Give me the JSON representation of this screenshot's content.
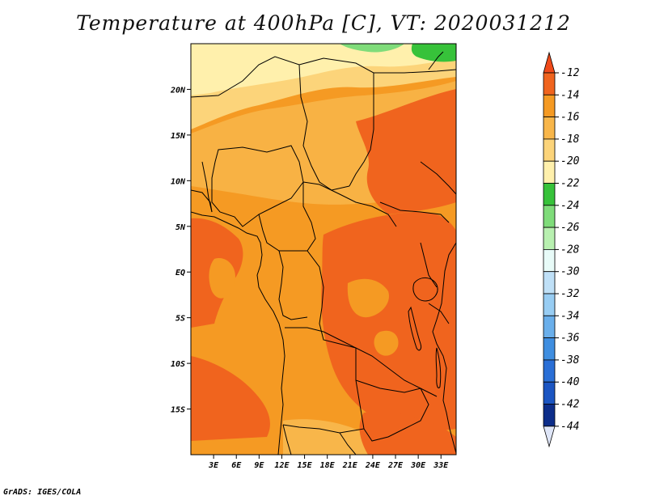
{
  "title": "Temperature at 400hPa [C], VT: 2020031212",
  "footer": "GrADS: IGES/COLA",
  "map": {
    "lon_range": [
      0,
      35
    ],
    "lat_range": [
      -20,
      25
    ],
    "lat_ticks": [
      {
        "value": 20,
        "label": "20N"
      },
      {
        "value": 15,
        "label": "15N"
      },
      {
        "value": 10,
        "label": "10N"
      },
      {
        "value": 5,
        "label": "5N"
      },
      {
        "value": 0,
        "label": "EQ"
      },
      {
        "value": -5,
        "label": "5S"
      },
      {
        "value": -10,
        "label": "10S"
      },
      {
        "value": -15,
        "label": "15S"
      }
    ],
    "lon_ticks": [
      {
        "value": 3,
        "label": "3E"
      },
      {
        "value": 6,
        "label": "6E"
      },
      {
        "value": 9,
        "label": "9E"
      },
      {
        "value": 12,
        "label": "12E"
      },
      {
        "value": 15,
        "label": "15E"
      },
      {
        "value": 18,
        "label": "18E"
      },
      {
        "value": 21,
        "label": "21E"
      },
      {
        "value": 24,
        "label": "24E"
      },
      {
        "value": 27,
        "label": "27E"
      },
      {
        "value": 30,
        "label": "30E"
      },
      {
        "value": 33,
        "label": "33E"
      }
    ],
    "field_colors": {
      "warm": "#f0641e",
      "mid": "#f59a23",
      "cool": "#f8b64a",
      "cooler": "#fcd47a",
      "coolest": "#fff0ac",
      "green_dark": "#37c23a",
      "green_light": "#7fdc7a"
    }
  },
  "colorbar": {
    "labels": [
      "-12",
      "-14",
      "-16",
      "-18",
      "-20",
      "-22",
      "-24",
      "-26",
      "-28",
      "-30",
      "-32",
      "-34",
      "-36",
      "-38",
      "-40",
      "-42",
      "-44"
    ],
    "colors": [
      "#f0641e",
      "#f59a23",
      "#f8b64a",
      "#fcd47a",
      "#fff0ac",
      "#37c23a",
      "#7fdc7a",
      "#b8f0b0",
      "#e8fbf8",
      "#bfe0f7",
      "#98cdf3",
      "#6aafeb",
      "#3f8ee0",
      "#2a6fd6",
      "#1b55c2",
      "#0c2d8a"
    ],
    "top_color": "#f04a1a",
    "bottom_color": "#dfe6f8"
  }
}
